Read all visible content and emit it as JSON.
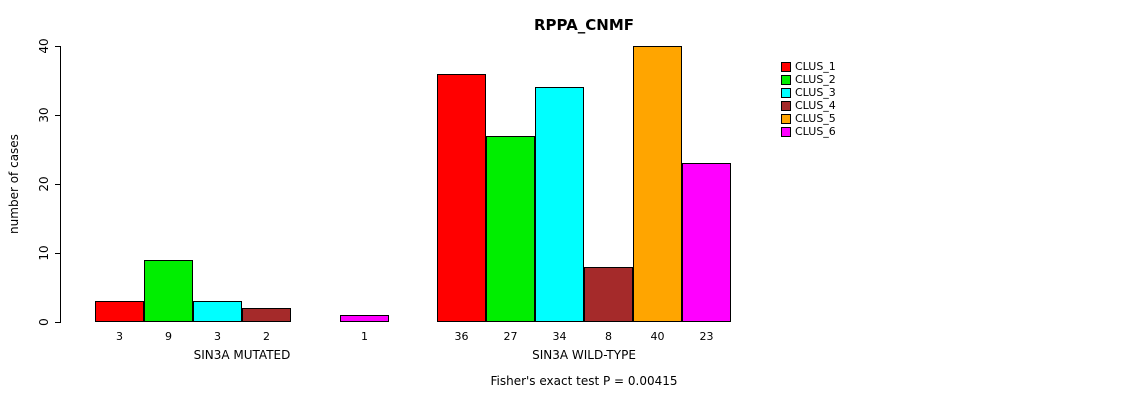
{
  "chart_data": {
    "type": "bar",
    "title": "RPPA_CNMF",
    "ylabel": "number of cases",
    "ylim": [
      0,
      40
    ],
    "yticks": [
      0,
      10,
      20,
      30,
      40
    ],
    "grid": false,
    "legend_position": "right",
    "legend_labels": [
      "CLUS_1",
      "CLUS_2",
      "CLUS_3",
      "CLUS_4",
      "CLUS_5",
      "CLUS_6"
    ],
    "series_colors": [
      "#ff0000",
      "#00ee00",
      "#00ffff",
      "#a52a2a",
      "#ffa500",
      "#ff00ff"
    ],
    "groups": [
      {
        "label": "SIN3A MUTATED",
        "values": [
          3,
          9,
          3,
          2,
          0,
          1
        ]
      },
      {
        "label": "SIN3A WILD-TYPE",
        "values": [
          36,
          27,
          34,
          8,
          40,
          23
        ]
      }
    ],
    "annotation": "Fisher's exact test P = 0.00415"
  }
}
